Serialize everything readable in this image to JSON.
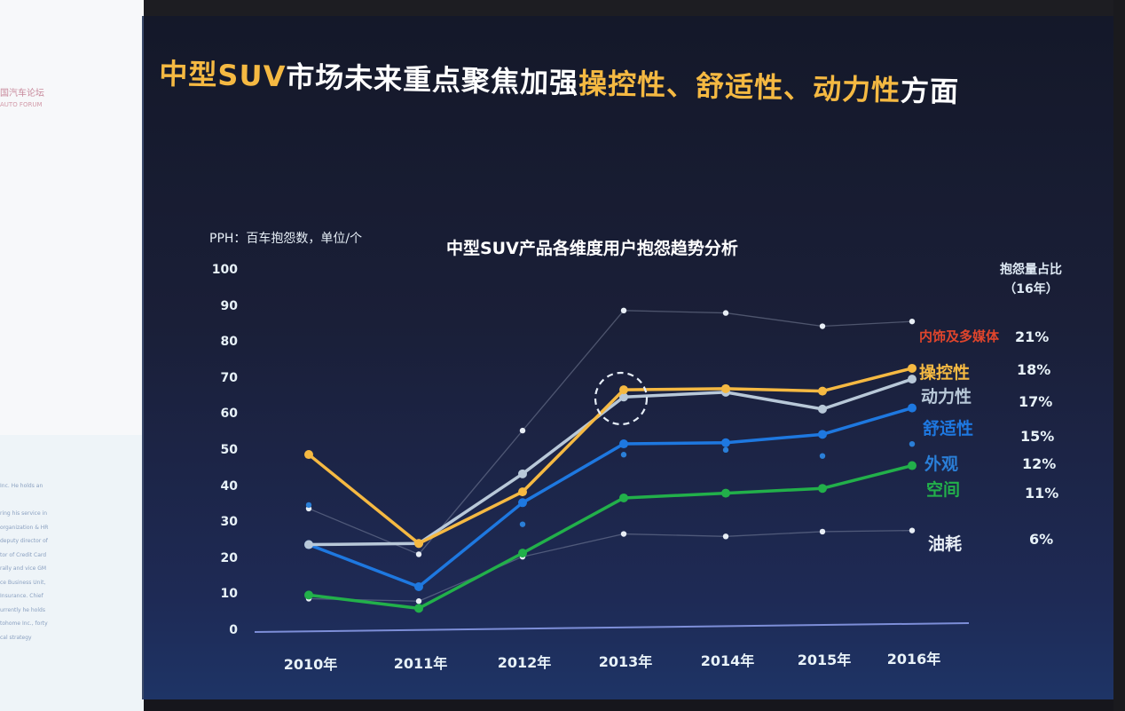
{
  "left_panel": {
    "logo_cn": "国汽车论坛",
    "logo_en": "AUTO FORUM",
    "bio_lines": [
      "Inc. He holds an",
      "",
      "ring his service in",
      "organization & HR",
      "deputy director of",
      "tor of Credit Card",
      "rally and vice GM",
      "ce Business Unit,",
      "Insurance. Chief",
      "urrently he holds",
      "tohome Inc., forty",
      "cal strategy"
    ]
  },
  "headline": {
    "part1": "中型",
    "part2": "SUV",
    "part3": "市场未来重点聚焦加强",
    "part4": "操控性、舒适性、动力性",
    "part5": "方面"
  },
  "colors": {
    "highlight": "#f5b942",
    "background": "#1a1f38"
  },
  "chart_data": {
    "type": "line",
    "title": "中型SUV产品各维度用户抱怨趋势分析",
    "ylabel": "PPH：百车抱怨数，单位/个",
    "xlabel": "",
    "ylim": [
      0,
      100
    ],
    "yticks": [
      "0",
      "10",
      "20",
      "30",
      "40",
      "50",
      "60",
      "70",
      "80",
      "90",
      "100"
    ],
    "categories": [
      "2010年",
      "2011年",
      "2012年",
      "2013年",
      "2014年",
      "2015年",
      "2016年"
    ],
    "share_header": [
      "抱怨量占比",
      "（16年）"
    ],
    "series": [
      {
        "name": "内饰及多媒体",
        "share": "21%",
        "color": "#e0452c",
        "mark": "#e8eef5",
        "style": "faint",
        "values": [
          34,
          21,
          55,
          88,
          87,
          83,
          84
        ]
      },
      {
        "name": "操控性",
        "share": "18%",
        "color": "#f5b942",
        "mark": "#f5b942",
        "style": "solid",
        "values": [
          49,
          24,
          38,
          66,
          66,
          65,
          71
        ]
      },
      {
        "name": "动力性",
        "share": "17%",
        "color": "#b8c8d8",
        "mark": "#b8c8d8",
        "style": "solid",
        "values": [
          24,
          24,
          43,
          64,
          65,
          60,
          68
        ]
      },
      {
        "name": "舒适性",
        "share": "15%",
        "color": "#1e78e0",
        "mark": "#1e78e0",
        "style": "solid",
        "values": [
          24,
          12,
          35,
          51,
          51,
          53,
          60
        ]
      },
      {
        "name": "外观",
        "share": "12%",
        "color": "#2a7fd8",
        "mark": "#2a7fd8",
        "style": "dots",
        "values": [
          35,
          null,
          29,
          48,
          49,
          47,
          50
        ]
      },
      {
        "name": "空间",
        "share": "11%",
        "color": "#22b04a",
        "mark": "#22b04a",
        "style": "solid",
        "values": [
          10,
          6,
          21,
          36,
          37,
          38,
          44
        ]
      },
      {
        "name": "油耗",
        "share": "6%",
        "color": "#e8eef5",
        "mark": "#e8eef5",
        "style": "faint",
        "values": [
          9,
          8,
          20,
          26,
          25,
          26,
          26
        ]
      }
    ],
    "annotation": "dashed circle highlighting 2013",
    "grid": false,
    "legend": "right"
  }
}
